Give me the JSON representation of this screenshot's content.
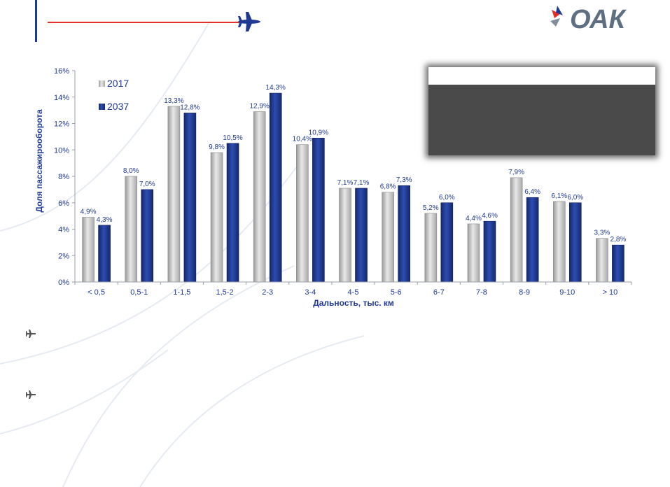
{
  "logo": {
    "text": "ОАК"
  },
  "colors": {
    "accent_red": "#e1302a",
    "brand_blue": "#1f3a93",
    "bar_2017": "#c8c8c8",
    "bar_2037": "#1f3a93"
  },
  "icons": {
    "header": "airplane-icon",
    "bullet": "small-plane-icon"
  },
  "chart_data": {
    "type": "bar",
    "categories": [
      "< 0,5",
      "0,5-1",
      "1-1,5",
      "1,5-2",
      "2-3",
      "3-4",
      "4-5",
      "5-6",
      "6-7",
      "7-8",
      "8-9",
      "9-10",
      "> 10"
    ],
    "series": [
      {
        "name": "2017",
        "values": [
          4.9,
          8.0,
          13.3,
          9.8,
          12.9,
          10.4,
          7.1,
          6.8,
          5.2,
          4.4,
          7.9,
          6.1,
          3.3
        ],
        "labels": [
          "4,9%",
          "8,0%",
          "13,3%",
          "9,8%",
          "12,9%",
          "10,4%",
          "7,1%",
          "6,8%",
          "5,2%",
          "4,4%",
          "7,9%",
          "6,1%",
          "3,3%"
        ]
      },
      {
        "name": "2037",
        "values": [
          4.3,
          7.0,
          12.8,
          10.5,
          14.3,
          10.9,
          7.1,
          7.3,
          6.0,
          4.6,
          6.4,
          6.0,
          2.8
        ],
        "labels": [
          "4,3%",
          "7,0%",
          "12,8%",
          "10,5%",
          "14,3%",
          "10,9%",
          "7,1%",
          "7,3%",
          "6,0%",
          "4,6%",
          "6,4%",
          "6,0%",
          "2,8%"
        ]
      }
    ],
    "xlabel": "Дальность, тыс. км",
    "ylabel": "Доля пассажирооборота",
    "ylim": [
      0,
      16
    ],
    "yticks": [
      0,
      2,
      4,
      6,
      8,
      10,
      12,
      14,
      16
    ],
    "ytick_labels": [
      "0%",
      "2%",
      "4%",
      "6%",
      "8%",
      "10%",
      "12%",
      "14%",
      "16%"
    ],
    "grid": false,
    "legend": "top-left"
  }
}
